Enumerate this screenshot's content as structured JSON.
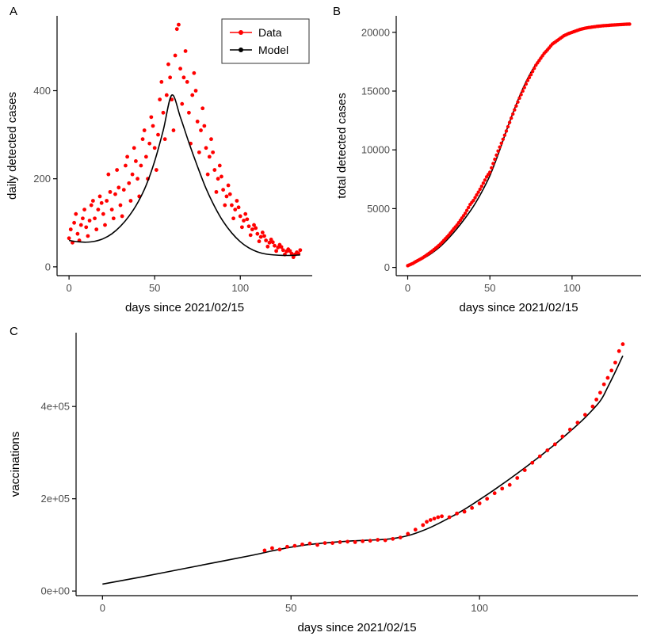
{
  "panels": [
    {
      "letter": "A"
    },
    {
      "letter": "B"
    },
    {
      "letter": "C"
    }
  ],
  "colors": {
    "point": "#FF0000",
    "line": "#000000",
    "axis": "#000000",
    "tick_label": "#4D4D4D",
    "title": "#000000",
    "legend_border": "#333333",
    "legend_bg": "#FFFFFF",
    "background": "#FFFFFF"
  },
  "chart_data": [
    {
      "panel": "A",
      "type": "scatter",
      "title": "",
      "xlabel": "days since 2021/02/15",
      "ylabel": "daily detected cases",
      "xlim": [
        -7,
        142
      ],
      "ylim": [
        -20,
        570
      ],
      "x_ticks": [
        {
          "v": 0,
          "label": "0"
        },
        {
          "v": 50,
          "label": "50"
        },
        {
          "v": 100,
          "label": "100"
        }
      ],
      "y_ticks": [
        {
          "v": 0,
          "label": "0"
        },
        {
          "v": 200,
          "label": "200"
        },
        {
          "v": 400,
          "label": "400"
        }
      ],
      "grid": false,
      "legend": {
        "position": "top-right",
        "entries": [
          {
            "label": "Data",
            "color": "#FF0000"
          },
          {
            "label": "Model",
            "color": "#000000"
          }
        ]
      },
      "data_start_day": 0,
      "data_values": [
        65,
        85,
        55,
        100,
        120,
        75,
        60,
        95,
        110,
        130,
        90,
        70,
        105,
        140,
        150,
        110,
        85,
        130,
        160,
        145,
        120,
        95,
        150,
        210,
        170,
        130,
        110,
        165,
        220,
        180,
        140,
        115,
        175,
        230,
        250,
        190,
        150,
        210,
        270,
        240,
        200,
        160,
        230,
        290,
        310,
        250,
        200,
        280,
        340,
        320,
        270,
        220,
        300,
        380,
        420,
        350,
        290,
        390,
        460,
        430,
        380,
        310,
        480,
        540,
        550,
        450,
        370,
        430,
        490,
        420,
        350,
        280,
        390,
        440,
        400,
        330,
        260,
        310,
        360,
        320,
        270,
        210,
        250,
        290,
        260,
        220,
        170,
        200,
        230,
        205,
        175,
        140,
        160,
        185,
        165,
        140,
        110,
        130,
        150,
        135,
        115,
        90,
        105,
        120,
        108,
        92,
        72,
        85,
        95,
        88,
        75,
        58,
        68,
        78,
        70,
        60,
        46,
        55,
        62,
        56,
        48,
        36,
        44,
        50,
        45,
        38,
        28,
        35,
        40,
        36,
        30,
        22,
        28,
        33,
        30,
        38
      ],
      "model_points": [
        [
          0,
          60
        ],
        [
          5,
          57
        ],
        [
          10,
          56
        ],
        [
          15,
          58
        ],
        [
          20,
          64
        ],
        [
          25,
          75
        ],
        [
          30,
          92
        ],
        [
          35,
          115
        ],
        [
          40,
          145
        ],
        [
          45,
          185
        ],
        [
          50,
          240
        ],
        [
          55,
          310
        ],
        [
          60,
          390
        ],
        [
          65,
          340
        ],
        [
          70,
          282
        ],
        [
          75,
          228
        ],
        [
          80,
          178
        ],
        [
          85,
          137
        ],
        [
          90,
          103
        ],
        [
          95,
          77
        ],
        [
          100,
          57
        ],
        [
          105,
          43
        ],
        [
          110,
          34
        ],
        [
          115,
          29
        ],
        [
          120,
          27
        ],
        [
          125,
          26
        ],
        [
          130,
          26
        ],
        [
          135,
          27
        ]
      ]
    },
    {
      "panel": "B",
      "type": "scatter",
      "title": "",
      "xlabel": "days since 2021/02/15",
      "ylabel": "total detected cases",
      "xlim": [
        -7,
        142
      ],
      "ylim": [
        -700,
        21400
      ],
      "x_ticks": [
        {
          "v": 0,
          "label": "0"
        },
        {
          "v": 50,
          "label": "50"
        },
        {
          "v": 100,
          "label": "100"
        }
      ],
      "y_ticks": [
        {
          "v": 0,
          "label": "0"
        },
        {
          "v": 5000,
          "label": "5000"
        },
        {
          "v": 10000,
          "label": "10000"
        },
        {
          "v": 15000,
          "label": "15000"
        },
        {
          "v": 20000,
          "label": "20000"
        }
      ],
      "grid": false,
      "legend": null,
      "data_points": [
        [
          0,
          150
        ],
        [
          3,
          330
        ],
        [
          5,
          500
        ],
        [
          8,
          730
        ],
        [
          10,
          900
        ],
        [
          13,
          1200
        ],
        [
          15,
          1400
        ],
        [
          18,
          1750
        ],
        [
          20,
          2000
        ],
        [
          23,
          2450
        ],
        [
          25,
          2750
        ],
        [
          28,
          3280
        ],
        [
          30,
          3600
        ],
        [
          33,
          4200
        ],
        [
          35,
          4600
        ],
        [
          38,
          5350
        ],
        [
          40,
          5700
        ],
        [
          43,
          6400
        ],
        [
          45,
          6900
        ],
        [
          48,
          7700
        ],
        [
          50,
          8100
        ],
        [
          53,
          9200
        ],
        [
          55,
          9900
        ],
        [
          58,
          10900
        ],
        [
          60,
          11600
        ],
        [
          63,
          12700
        ],
        [
          65,
          13400
        ],
        [
          68,
          14400
        ],
        [
          70,
          15000
        ],
        [
          73,
          15900
        ],
        [
          75,
          16400
        ],
        [
          78,
          17200
        ],
        [
          80,
          17600
        ],
        [
          83,
          18200
        ],
        [
          85,
          18500
        ],
        [
          88,
          19000
        ],
        [
          90,
          19200
        ],
        [
          93,
          19500
        ],
        [
          95,
          19700
        ],
        [
          98,
          19900
        ],
        [
          100,
          20000
        ],
        [
          103,
          20150
        ],
        [
          105,
          20250
        ],
        [
          108,
          20350
        ],
        [
          110,
          20400
        ],
        [
          113,
          20460
        ],
        [
          115,
          20500
        ],
        [
          118,
          20545
        ],
        [
          120,
          20570
        ],
        [
          123,
          20600
        ],
        [
          125,
          20620
        ],
        [
          128,
          20645
        ],
        [
          130,
          20660
        ],
        [
          133,
          20685
        ],
        [
          135,
          20700
        ]
      ],
      "model_points": [
        [
          0,
          100
        ],
        [
          5,
          420
        ],
        [
          10,
          800
        ],
        [
          15,
          1250
        ],
        [
          20,
          1800
        ],
        [
          25,
          2500
        ],
        [
          30,
          3300
        ],
        [
          35,
          4200
        ],
        [
          40,
          5200
        ],
        [
          45,
          6400
        ],
        [
          50,
          7800
        ],
        [
          55,
          9600
        ],
        [
          60,
          11600
        ],
        [
          65,
          13500
        ],
        [
          70,
          15200
        ],
        [
          75,
          16600
        ],
        [
          80,
          17700
        ],
        [
          85,
          18600
        ],
        [
          90,
          19200
        ],
        [
          95,
          19700
        ],
        [
          100,
          20000
        ],
        [
          105,
          20200
        ],
        [
          110,
          20350
        ],
        [
          115,
          20450
        ],
        [
          120,
          20520
        ],
        [
          125,
          20580
        ],
        [
          130,
          20620
        ],
        [
          135,
          20660
        ]
      ]
    },
    {
      "panel": "C",
      "type": "scatter",
      "title": "",
      "xlabel": "days since 2021/02/15",
      "ylabel": "vaccinations",
      "xlim": [
        -7,
        142
      ],
      "ylim": [
        -10000,
        560000
      ],
      "x_ticks": [
        {
          "v": 0,
          "label": "0"
        },
        {
          "v": 50,
          "label": "50"
        },
        {
          "v": 100,
          "label": "100"
        }
      ],
      "y_ticks": [
        {
          "v": 0,
          "label": "0e+00"
        },
        {
          "v": 200000,
          "label": "2e+05"
        },
        {
          "v": 400000,
          "label": "4e+05"
        }
      ],
      "grid": false,
      "legend": null,
      "data_points": [
        [
          43,
          88000
        ],
        [
          45,
          93000
        ],
        [
          47,
          90000
        ],
        [
          49,
          96000
        ],
        [
          51,
          98000
        ],
        [
          53,
          101000
        ],
        [
          55,
          103000
        ],
        [
          57,
          100000
        ],
        [
          59,
          104000
        ],
        [
          61,
          104000
        ],
        [
          63,
          106000
        ],
        [
          65,
          107000
        ],
        [
          67,
          106000
        ],
        [
          69,
          108000
        ],
        [
          71,
          109000
        ],
        [
          73,
          111000
        ],
        [
          75,
          110000
        ],
        [
          77,
          113000
        ],
        [
          79,
          116000
        ],
        [
          81,
          124000
        ],
        [
          83,
          133000
        ],
        [
          85,
          143000
        ],
        [
          86,
          150000
        ],
        [
          87,
          154000
        ],
        [
          88,
          157000
        ],
        [
          89,
          160000
        ],
        [
          90,
          162000
        ],
        [
          92,
          160000
        ],
        [
          94,
          168000
        ],
        [
          96,
          172000
        ],
        [
          98,
          180000
        ],
        [
          100,
          190000
        ],
        [
          102,
          200000
        ],
        [
          104,
          212000
        ],
        [
          106,
          222000
        ],
        [
          108,
          230000
        ],
        [
          110,
          245000
        ],
        [
          112,
          262000
        ],
        [
          114,
          278000
        ],
        [
          116,
          292000
        ],
        [
          118,
          305000
        ],
        [
          120,
          318000
        ],
        [
          122,
          335000
        ],
        [
          124,
          350000
        ],
        [
          126,
          365000
        ],
        [
          128,
          382000
        ],
        [
          130,
          400000
        ],
        [
          131,
          415000
        ],
        [
          132,
          430000
        ],
        [
          133,
          448000
        ],
        [
          134,
          462000
        ],
        [
          135,
          478000
        ],
        [
          136,
          495000
        ],
        [
          137,
          520000
        ],
        [
          138,
          535000
        ]
      ],
      "model_points": [
        [
          0,
          15000
        ],
        [
          10,
          30000
        ],
        [
          20,
          46000
        ],
        [
          30,
          62000
        ],
        [
          40,
          78000
        ],
        [
          45,
          87000
        ],
        [
          50,
          95000
        ],
        [
          55,
          101000
        ],
        [
          60,
          105000
        ],
        [
          65,
          108000
        ],
        [
          70,
          110000
        ],
        [
          75,
          112000
        ],
        [
          78,
          115000
        ],
        [
          81,
          120000
        ],
        [
          84,
          128000
        ],
        [
          87,
          138000
        ],
        [
          90,
          150000
        ],
        [
          93,
          163000
        ],
        [
          96,
          177000
        ],
        [
          100,
          198000
        ],
        [
          104,
          220000
        ],
        [
          108,
          243000
        ],
        [
          112,
          267000
        ],
        [
          116,
          292000
        ],
        [
          120,
          318000
        ],
        [
          124,
          346000
        ],
        [
          128,
          376000
        ],
        [
          132,
          412000
        ],
        [
          134,
          442000
        ],
        [
          136,
          475000
        ],
        [
          138,
          510000
        ]
      ]
    }
  ]
}
